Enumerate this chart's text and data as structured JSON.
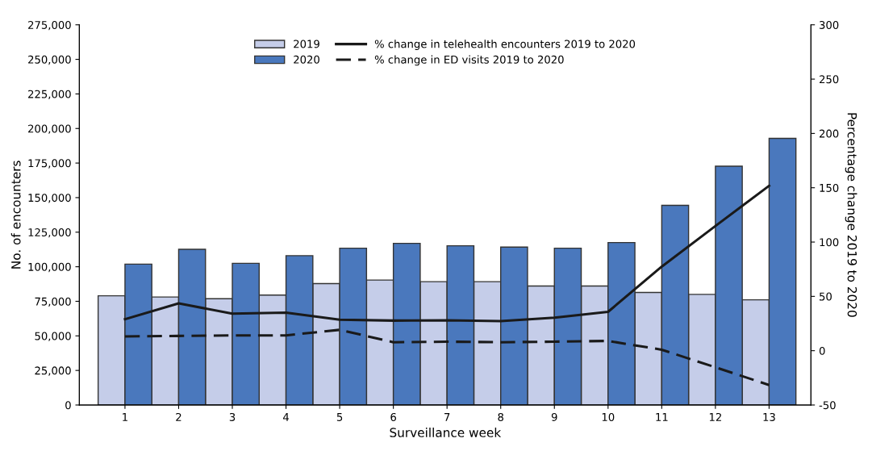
{
  "chart_data": {
    "type": "bar",
    "xlabel": "Surveillance week",
    "ylabel": "No. of encounters",
    "y2label": "Percentage change 2019 to 2020",
    "categories": [
      "1",
      "2",
      "3",
      "4",
      "5",
      "6",
      "7",
      "8",
      "9",
      "10",
      "11",
      "12",
      "13"
    ],
    "series": [
      {
        "name": "2019",
        "color": "#c5cde9",
        "values": [
          79000,
          78100,
          76900,
          79500,
          87800,
          90400,
          89200,
          89200,
          86100,
          86100,
          81400,
          80000,
          76100
        ]
      },
      {
        "name": "2020",
        "color": "#4a78bd",
        "values": [
          101900,
          112600,
          102500,
          108000,
          113400,
          116900,
          115200,
          114200,
          113400,
          117500,
          144400,
          172700,
          192900
        ]
      },
      {
        "name": "% change in telehealth encounters 2019 to 2020",
        "type": "line",
        "axis": "y2",
        "line_style": "solid",
        "color": "#1a1a1a",
        "values": [
          29,
          43.6,
          34.1,
          35,
          28.5,
          27.7,
          28,
          27.2,
          30.4,
          35.8,
          77.4,
          114.8,
          151.8
        ]
      },
      {
        "name": "% change in ED visits 2019 to 2020",
        "type": "line",
        "axis": "y2",
        "line_style": "dashed",
        "color": "#1a1a1a",
        "values": [
          13.1,
          13.6,
          14.1,
          14.1,
          19.2,
          7.8,
          8.3,
          7.8,
          8.3,
          9,
          0.9,
          -15.3,
          -31.6
        ]
      }
    ],
    "ylim": [
      0,
      275000
    ],
    "yticks": [
      0,
      {
        "value": 25000,
        "label": "25,000"
      },
      {
        "value": 50000,
        "label": "50,000"
      },
      {
        "value": 75000,
        "label": "75,000"
      },
      {
        "value": 100000,
        "label": "100,000"
      },
      {
        "value": 125000,
        "label": "125,000"
      },
      {
        "value": 150000,
        "label": "150,000"
      },
      {
        "value": 175000,
        "label": "175,000"
      },
      {
        "value": 200000,
        "label": "200,000"
      },
      {
        "value": 225000,
        "label": "225,000"
      },
      {
        "value": 250000,
        "label": "250,000"
      },
      {
        "value": 275000,
        "label": "275,000"
      }
    ],
    "y2lim": [
      -50,
      300
    ],
    "y2ticks": [
      -50,
      0,
      50,
      100,
      150,
      200,
      250,
      300
    ],
    "legend": "top",
    "grid": false
  }
}
